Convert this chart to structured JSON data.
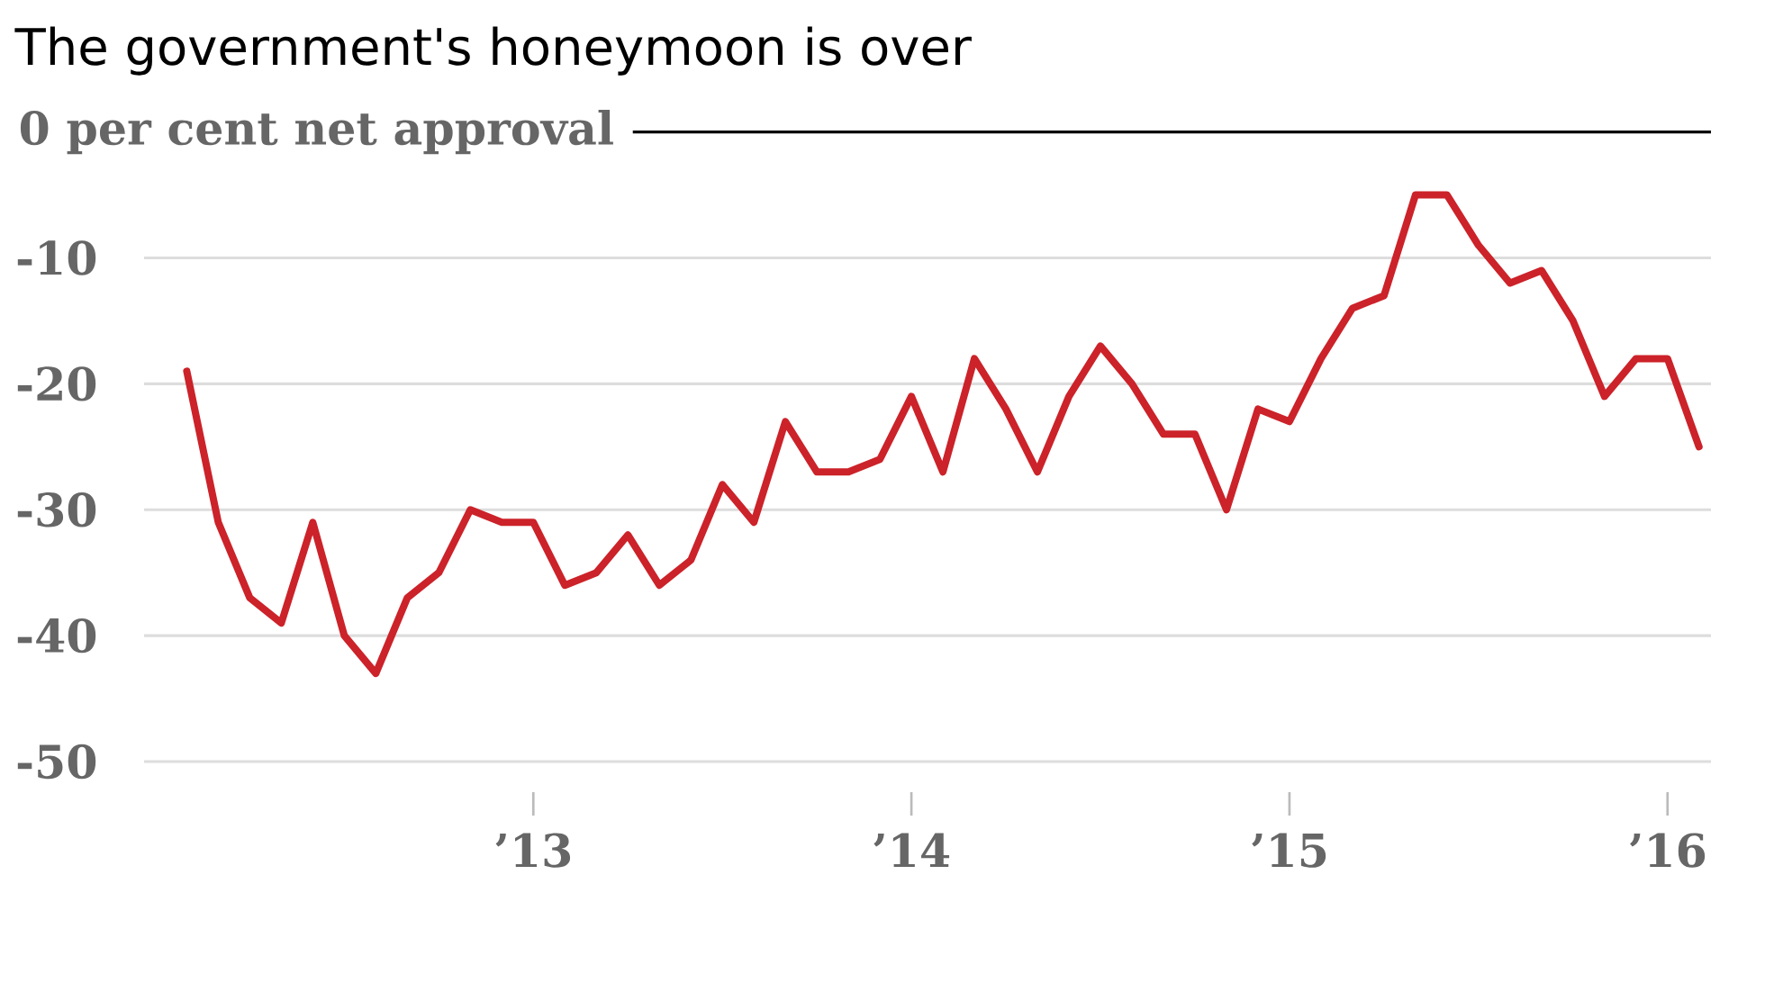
{
  "chart_data": {
    "type": "line",
    "title": "The government's honeymoon is over",
    "x": [
      "2012-02",
      "2012-03",
      "2012-04",
      "2012-05",
      "2012-06",
      "2012-07",
      "2012-08",
      "2012-09",
      "2012-10",
      "2012-11",
      "2012-12",
      "2013-01",
      "2013-02",
      "2013-03",
      "2013-04",
      "2013-05",
      "2013-06",
      "2013-07",
      "2013-08",
      "2013-09",
      "2013-10",
      "2013-11",
      "2013-12",
      "2014-01",
      "2014-02",
      "2014-03",
      "2014-04",
      "2014-05",
      "2014-06",
      "2014-07",
      "2014-08",
      "2014-09",
      "2014-10",
      "2014-11",
      "2014-12",
      "2015-01",
      "2015-02",
      "2015-03",
      "2015-04",
      "2015-05",
      "2015-06",
      "2015-07",
      "2015-08",
      "2015-09",
      "2015-10",
      "2015-11",
      "2015-12",
      "2016-01",
      "2016-02"
    ],
    "series": [
      {
        "color": "#cc2229",
        "values": [
          -19,
          -31,
          -37,
          -39,
          -31,
          -40,
          -43,
          -37,
          -35,
          -30,
          -31,
          -31,
          -36,
          -35,
          -32,
          -36,
          -34,
          -28,
          -31,
          -23,
          -27,
          -27,
          -26,
          -21,
          -27,
          -18,
          -22,
          -27,
          -21,
          -17,
          -20,
          -24,
          -24,
          -30,
          -22,
          -23,
          -18,
          -14,
          -13,
          -5,
          -5,
          -9,
          -12,
          -11,
          -15,
          -21,
          -18,
          -18,
          -25
        ]
      }
    ],
    "xlim": [
      "2011-12-21",
      "2016-02-12"
    ],
    "xticks": [
      {
        "value": "2013-01",
        "label": "’13"
      },
      {
        "value": "2014-01",
        "label": "’14"
      },
      {
        "value": "2015-01",
        "label": "’15"
      },
      {
        "value": "2016-01",
        "label": "’16"
      }
    ],
    "ylim": [
      -50,
      0
    ],
    "yticks": [
      -10,
      -20,
      -30,
      -40,
      -50
    ],
    "ref_lines": [
      {
        "axis": "y",
        "value": 0,
        "label": "0 per cent net approval",
        "color": "#000000"
      }
    ],
    "grid": "y",
    "marker": "none",
    "line_style": "solid"
  }
}
